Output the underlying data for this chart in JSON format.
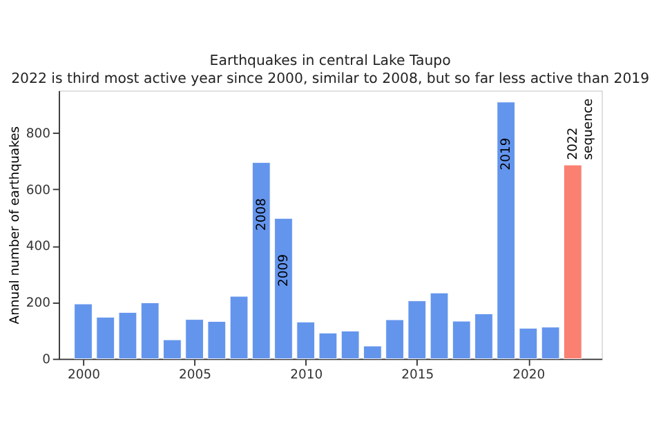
{
  "chart_data": {
    "type": "bar",
    "title": "Earthquakes in central Lake Taupo",
    "subtitle": "2022 is third most active year since 2000, similar to 2008, but so far less active than 2019",
    "ylabel": "Annual number of earthquakes",
    "x": [
      2000,
      2001,
      2002,
      2003,
      2004,
      2005,
      2006,
      2007,
      2008,
      2009,
      2010,
      2011,
      2012,
      2013,
      2014,
      2015,
      2016,
      2017,
      2018,
      2019,
      2020,
      2021,
      2022
    ],
    "values": [
      194,
      147,
      164,
      198,
      67,
      139,
      132,
      221,
      695,
      497,
      130,
      91,
      98,
      45,
      138,
      205,
      233,
      133,
      159,
      909,
      108,
      112,
      686
    ],
    "colors": [
      "#6495ed",
      "#6495ed",
      "#6495ed",
      "#6495ed",
      "#6495ed",
      "#6495ed",
      "#6495ed",
      "#6495ed",
      "#6495ed",
      "#6495ed",
      "#6495ed",
      "#6495ed",
      "#6495ed",
      "#6495ed",
      "#6495ed",
      "#6495ed",
      "#6495ed",
      "#6495ed",
      "#6495ed",
      "#6495ed",
      "#6495ed",
      "#6495ed",
      "#fa8072"
    ],
    "annotations": [
      {
        "text": "2008",
        "x": 2008,
        "y": 695
      },
      {
        "text": "2009",
        "x": 2009,
        "y": 497
      },
      {
        "text": "2019",
        "x": 2019,
        "y": 909
      },
      {
        "text": "2022\nsequence",
        "x": 2022,
        "y": 686
      }
    ],
    "xlim": [
      1998.9,
      2023.3
    ],
    "xticks": [
      2000,
      2005,
      2010,
      2015,
      2020
    ],
    "ylim": [
      0,
      950
    ],
    "yticks": [
      0,
      200,
      400,
      600,
      800
    ],
    "grid": false
  }
}
